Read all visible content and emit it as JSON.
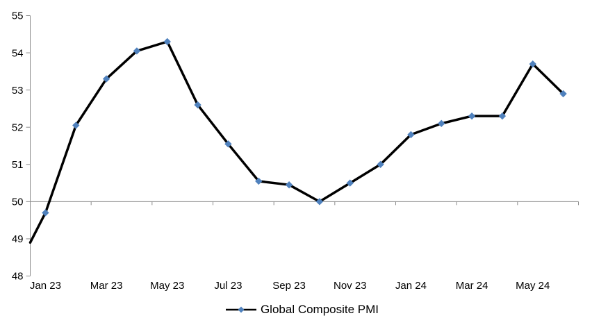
{
  "chart_data": {
    "type": "line",
    "categories": [
      "Jan 23",
      "Feb 23",
      "Mar 23",
      "Apr 23",
      "May 23",
      "Jun 23",
      "Jul 23",
      "Aug 23",
      "Sep 23",
      "Oct 23",
      "Nov 23",
      "Dec 23",
      "Jan 24",
      "Feb 24",
      "Mar 24",
      "Apr 24",
      "May 24",
      "Jun 24"
    ],
    "series": [
      {
        "name": "Global Composite PMI",
        "values": [
          49.7,
          52.05,
          53.3,
          54.05,
          54.3,
          52.6,
          51.55,
          50.55,
          50.45,
          50.0,
          50.5,
          51.0,
          51.8,
          52.1,
          52.3,
          52.3,
          53.7,
          52.9
        ]
      }
    ],
    "line_enters_left_edge_at_value": 48.9,
    "y_axis": {
      "min": 48,
      "max": 55,
      "tick_step": 1,
      "tick_labels": [
        "55",
        "54",
        "53",
        "52",
        "51",
        "50",
        "49",
        "48"
      ]
    },
    "x_axis": {
      "tick_labels": [
        "Jan 23",
        "Mar 23",
        "May 23",
        "Jul 23",
        "Sep 23",
        "Nov 23",
        "Jan 24",
        "Mar 24",
        "May 24"
      ],
      "label_every_n_categories": 2,
      "crosses_at_value": 50
    },
    "legend": {
      "label": "Global Composite PMI",
      "position": "bottom-center"
    },
    "style": {
      "line_color": "#000000",
      "marker_shape": "diamond",
      "marker_color": "#4F81BD",
      "axis_color": "#8C8C8C",
      "text_color": "#000000",
      "grid": "off",
      "background": "#FFFFFF"
    }
  }
}
